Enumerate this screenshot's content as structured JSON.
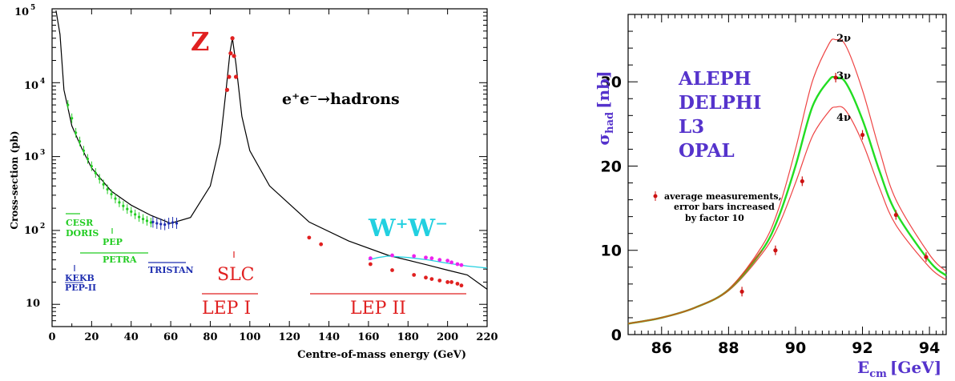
{
  "colors": {
    "green": "#22cc22",
    "blue": "#1f2fb0",
    "red": "#e02020",
    "cyan": "#22d0e0",
    "magenta": "#ee22ee",
    "purple": "#5533cc",
    "curve_red": "#ee4444",
    "curve_green": "#22dd22",
    "marker": "#cc1111"
  },
  "chart_data": [
    {
      "type": "line",
      "title": "",
      "xlabel": "Centre-of-mass energy (GeV)",
      "ylabel": "Cross-section (pb)",
      "xlim": [
        0,
        220
      ],
      "ylim": [
        5,
        100000
      ],
      "yscale": "log",
      "x_ticks": [
        "0",
        "20",
        "40",
        "60",
        "80",
        "100",
        "120",
        "140",
        "160",
        "180",
        "200",
        "220"
      ],
      "y_tick_exponents": [
        "5",
        "4",
        "3",
        "2"
      ],
      "y_tick_last": "10",
      "series": [
        {
          "name": "e+e- → hadrons",
          "x": [
            2,
            4,
            6,
            10,
            15,
            20,
            30,
            40,
            50,
            60,
            70,
            80,
            85,
            88,
            90,
            91.2,
            93,
            96,
            100,
            110,
            130,
            150,
            170,
            190,
            200,
            210,
            220
          ],
          "y": [
            95000,
            45000,
            8000,
            2600,
            1300,
            700,
            340,
            220,
            160,
            125,
            150,
            400,
            1500,
            8000,
            26000,
            40000,
            18000,
            3500,
            1200,
            400,
            130,
            72,
            46,
            34,
            29,
            25,
            16
          ]
        },
        {
          "name": "W+W-",
          "x": [
            160,
            165,
            170,
            180,
            190,
            200,
            210,
            220
          ],
          "y": [
            40,
            43,
            45,
            43,
            40,
            36,
            33,
            31
          ]
        }
      ],
      "points_green": {
        "x": [
          8,
          10,
          12,
          14,
          16,
          18,
          20,
          22,
          24,
          26,
          28,
          30,
          32,
          34,
          36,
          38,
          40,
          42,
          44,
          46,
          48,
          50
        ],
        "y": [
          5000,
          3300,
          2100,
          1600,
          1200,
          930,
          740,
          600,
          500,
          420,
          360,
          310,
          270,
          240,
          215,
          195,
          180,
          165,
          152,
          143,
          135,
          128
        ]
      },
      "points_blue": {
        "x": [
          51,
          53,
          55,
          57,
          59,
          61,
          63
        ],
        "y": [
          130,
          125,
          122,
          120,
          125,
          128,
          125
        ]
      },
      "points_lep1": {
        "x": [
          88.5,
          89.5,
          90.3,
          91.2,
          92,
          93
        ],
        "y": [
          8000,
          12000,
          25000,
          40000,
          23000,
          12000
        ]
      },
      "points_lep2": {
        "x": [
          130,
          136,
          161,
          172,
          183,
          189,
          192,
          196,
          200,
          202,
          205,
          207
        ],
        "y": [
          80,
          65,
          35,
          29,
          25,
          23,
          22,
          21,
          20,
          20,
          19,
          18
        ]
      },
      "points_ww": {
        "x": [
          161,
          172,
          183,
          189,
          192,
          196,
          200,
          202,
          205,
          207
        ],
        "y": [
          42,
          46,
          45,
          43,
          42,
          40,
          39,
          37,
          35,
          34
        ]
      },
      "labels": {
        "z": "Z",
        "process": "e⁺e⁻→hadrons",
        "ww": "W⁺W⁻",
        "slc": "SLC",
        "lep1": "LEP I",
        "lep2": "LEP II",
        "cesr": "CESR",
        "doris": "DORIS",
        "pep": "PEP",
        "petra": "PETRA",
        "tristan": "TRISTAN",
        "kekb": "KEKB",
        "pepii": "PEP-II"
      }
    },
    {
      "type": "line",
      "title": "",
      "xlabel": "E_cm [GeV]",
      "xlabel_main": "E",
      "xlabel_sub": "cm",
      "xlabel_unit": "[GeV]",
      "ylabel_main": "σ",
      "ylabel_sub": "had",
      "ylabel_unit": "[nb]",
      "xlim": [
        85,
        94.5
      ],
      "ylim": [
        0,
        38
      ],
      "x_ticks": [
        "86",
        "88",
        "90",
        "92",
        "94"
      ],
      "y_ticks": [
        "0",
        "10",
        "20",
        "30"
      ],
      "experiments": [
        "ALEPH",
        "DELPHI",
        "L3",
        "OPAL"
      ],
      "legend_text": [
        "average measurements,",
        "error bars increased",
        "by factor 10"
      ],
      "series": [
        {
          "name": "2ν",
          "x": [
            85,
            86,
            87,
            88,
            89,
            89.5,
            90,
            90.5,
            91,
            91.2,
            91.5,
            92,
            92.5,
            93,
            94,
            94.5
          ],
          "y": [
            1.3,
            2.0,
            3.2,
            5.4,
            10.5,
            15,
            22,
            30,
            34.5,
            35,
            34.3,
            29,
            22,
            16,
            9.5,
            7.5
          ]
        },
        {
          "name": "3ν",
          "x": [
            85,
            86,
            87,
            88,
            89,
            89.5,
            90,
            90.5,
            91,
            91.2,
            91.5,
            92,
            92.5,
            93,
            94,
            94.5
          ],
          "y": [
            1.3,
            2.0,
            3.2,
            5.3,
            10,
            14,
            20,
            27,
            30.2,
            30.5,
            29.9,
            25.5,
            19.5,
            14.5,
            8.7,
            7.0
          ]
        },
        {
          "name": "4ν",
          "x": [
            85,
            86,
            87,
            88,
            89,
            89.5,
            90,
            90.5,
            91,
            91.2,
            91.5,
            92,
            92.5,
            93,
            94,
            94.5
          ],
          "y": [
            1.3,
            2.0,
            3.2,
            5.2,
            9.6,
            13,
            18,
            23.5,
            26.5,
            27,
            26.6,
            22.8,
            17.5,
            13,
            8.0,
            6.5
          ]
        }
      ],
      "points": {
        "x": [
          88.4,
          89.4,
          90.2,
          91.2,
          92.0,
          93.0,
          93.9
        ],
        "y": [
          5.1,
          10.0,
          18.2,
          30.5,
          23.7,
          14.2,
          9.2
        ]
      }
    }
  ]
}
